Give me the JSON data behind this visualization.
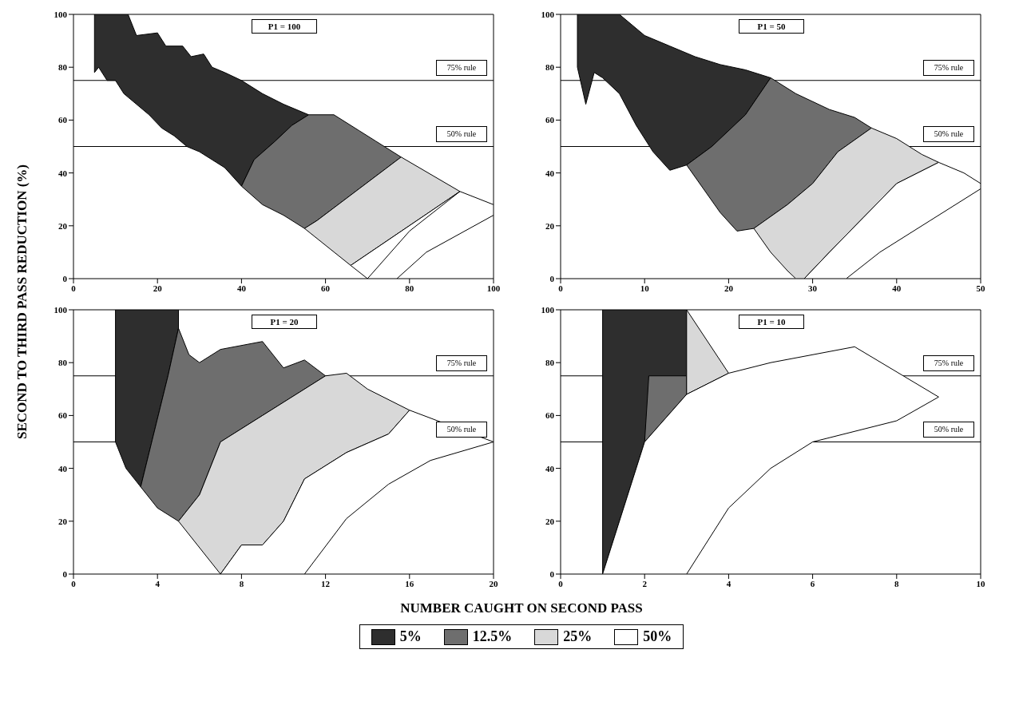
{
  "chart_data": [
    {
      "type": "area",
      "title": "P1 = 100",
      "ylabel": "SECOND TO THIRD PASS REDUCTION (%)",
      "legend": "bottom",
      "xlim": [
        0,
        100
      ],
      "xticks": [
        0,
        20,
        40,
        60,
        80,
        100
      ],
      "ylim": [
        0,
        100
      ],
      "yticks": [
        0,
        20,
        40,
        60,
        80,
        100
      ],
      "ref_lines": [
        {
          "axis": "y",
          "value": 75,
          "label": "75% rule"
        },
        {
          "axis": "y",
          "value": 50,
          "label": "50% rule"
        }
      ],
      "series": [
        {
          "name": "5%",
          "color": "#2e2e2e",
          "x": [
            5,
            13,
            15,
            20,
            22,
            26,
            28,
            31,
            33,
            36,
            40,
            45,
            50,
            56,
            52,
            48,
            43,
            40,
            36,
            33,
            30,
            27,
            24,
            21,
            18,
            15,
            12,
            10,
            8,
            6,
            5
          ],
          "values": [
            100,
            100,
            92,
            93,
            88,
            88,
            84,
            85,
            80,
            78,
            75,
            70,
            66,
            62,
            58,
            52,
            45,
            35,
            42,
            45,
            48,
            50,
            54,
            57,
            62,
            66,
            70,
            75,
            75,
            80,
            78
          ]
        },
        {
          "name": "12.5%",
          "color": "#6e6e6e",
          "x": [
            56,
            62,
            68,
            72,
            78,
            58,
            55,
            50,
            45,
            40,
            43,
            48,
            52
          ],
          "values": [
            62,
            62,
            56,
            52,
            46,
            22,
            19,
            24,
            28,
            35,
            45,
            52,
            58
          ]
        },
        {
          "name": "25%",
          "color": "#d8d8d8",
          "x": [
            78,
            92,
            66,
            55,
            58
          ],
          "values": [
            46,
            33,
            5,
            19,
            22
          ]
        },
        {
          "name": "50%",
          "color": "#ffffff",
          "x": [
            92,
            100,
            100,
            92,
            84,
            77,
            70,
            66
          ],
          "values": [
            33,
            28,
            24,
            17,
            10,
            0,
            0,
            5
          ]
        },
        {
          "type": "line",
          "color": "#000000",
          "x": [
            92,
            80,
            70
          ],
          "values": [
            33,
            18,
            0
          ]
        }
      ]
    },
    {
      "type": "area",
      "title": "P1 = 50",
      "xlim": [
        0,
        50
      ],
      "xticks": [
        0,
        10,
        20,
        30,
        40,
        50
      ],
      "ylim": [
        0,
        100
      ],
      "yticks": [
        0,
        20,
        40,
        60,
        80,
        100
      ],
      "ref_lines": [
        {
          "axis": "y",
          "value": 75,
          "label": "75% rule"
        },
        {
          "axis": "y",
          "value": 50,
          "label": "50% rule"
        }
      ],
      "series": [
        {
          "color": "#2e2e2e",
          "x": [
            2,
            7,
            10,
            13,
            16,
            19,
            22,
            25,
            22,
            18,
            15,
            13,
            11,
            9,
            7,
            5,
            4,
            3,
            2
          ],
          "values": [
            100,
            100,
            92,
            88,
            84,
            81,
            79,
            76,
            62,
            50,
            43,
            41,
            48,
            58,
            70,
            76,
            78,
            66,
            80
          ]
        },
        {
          "color": "#6e6e6e",
          "x": [
            25,
            28,
            32,
            35,
            37,
            33,
            30,
            27,
            23,
            21,
            19,
            15,
            18,
            22
          ],
          "values": [
            76,
            70,
            64,
            61,
            57,
            48,
            36,
            28,
            19,
            18,
            25,
            43,
            50,
            62
          ]
        },
        {
          "color": "#d8d8d8",
          "x": [
            37,
            40,
            42,
            43,
            45,
            40,
            36,
            32,
            29,
            28,
            27,
            25,
            23,
            27,
            30,
            33
          ],
          "values": [
            57,
            53,
            49,
            47,
            44,
            36,
            23,
            10,
            0,
            0,
            3,
            10,
            19,
            28,
            36,
            48
          ]
        },
        {
          "color": "#ffffff",
          "x": [
            45,
            48,
            50,
            50,
            44,
            38,
            34,
            29,
            32,
            36,
            40
          ],
          "values": [
            44,
            40,
            36,
            34,
            22,
            10,
            0,
            0,
            10,
            23,
            36
          ]
        }
      ]
    },
    {
      "type": "area",
      "title": "P1 = 20",
      "xlabel": "NUMBER CAUGHT ON SECOND PASS",
      "xlim": [
        0,
        20
      ],
      "xticks": [
        0,
        4,
        8,
        12,
        16,
        20
      ],
      "ylim": [
        0,
        100
      ],
      "yticks": [
        0,
        20,
        40,
        60,
        80,
        100
      ],
      "ref_lines": [
        {
          "axis": "y",
          "value": 75,
          "label": "75% rule"
        },
        {
          "axis": "y",
          "value": 50,
          "label": "50% rule"
        }
      ],
      "series": [
        {
          "color": "#2e2e2e",
          "x": [
            2,
            5,
            5,
            4.5,
            3.2,
            2.5,
            2
          ],
          "values": [
            100,
            100,
            93,
            75,
            33,
            40,
            50
          ]
        },
        {
          "color": "#6e6e6e",
          "x": [
            5,
            5.5,
            6,
            7,
            9,
            10,
            11,
            12,
            9,
            7,
            6,
            5,
            4,
            3.2,
            4.5
          ],
          "values": [
            93,
            83,
            80,
            85,
            88,
            78,
            81,
            75,
            60,
            50,
            30,
            20,
            25,
            33,
            75
          ]
        },
        {
          "color": "#d8d8d8",
          "x": [
            12,
            13,
            14,
            16,
            15,
            13,
            11,
            10,
            9,
            8,
            7,
            5,
            6,
            7,
            9
          ],
          "values": [
            75,
            76,
            70,
            62,
            53,
            46,
            36,
            20,
            11,
            11,
            0,
            20,
            30,
            50,
            60
          ]
        },
        {
          "color": "#ffffff",
          "x": [
            16,
            20,
            17,
            15,
            13,
            11,
            7,
            8,
            9,
            10,
            11,
            13,
            15
          ],
          "values": [
            62,
            50,
            43,
            34,
            21,
            0,
            0,
            11,
            11,
            20,
            36,
            46,
            53
          ]
        }
      ]
    },
    {
      "type": "area",
      "title": "P1 = 10",
      "xlim": [
        0,
        10
      ],
      "xticks": [
        0,
        2,
        4,
        6,
        8,
        10
      ],
      "ylim": [
        0,
        100
      ],
      "yticks": [
        0,
        20,
        40,
        60,
        80,
        100
      ],
      "ref_lines": [
        {
          "axis": "y",
          "value": 75,
          "label": "75% rule"
        },
        {
          "axis": "y",
          "value": 50,
          "label": "50% rule"
        }
      ],
      "series": [
        {
          "color": "#2e2e2e",
          "x": [
            1,
            3,
            3,
            2,
            1
          ],
          "values": [
            100,
            100,
            68,
            50,
            0
          ]
        },
        {
          "color": "#6e6e6e",
          "x": [
            2.1,
            3,
            3,
            2
          ],
          "values": [
            75,
            75,
            68,
            50
          ]
        },
        {
          "color": "#d8d8d8",
          "x": [
            3,
            4,
            3
          ],
          "values": [
            100,
            76,
            68
          ]
        },
        {
          "color": "#ffffff",
          "x": [
            3,
            4,
            5,
            7,
            9,
            8,
            6,
            5,
            4,
            3,
            1,
            2
          ],
          "values": [
            68,
            76,
            80,
            86,
            67,
            58,
            50,
            40,
            25,
            0,
            0,
            50
          ]
        }
      ]
    }
  ]
}
